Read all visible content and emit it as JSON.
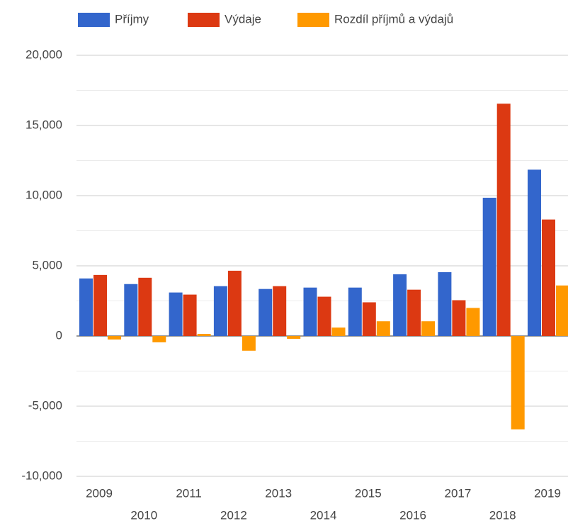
{
  "chart_data": {
    "type": "bar",
    "categories": [
      "2009",
      "2010",
      "2011",
      "2012",
      "2013",
      "2014",
      "2015",
      "2016",
      "2017",
      "2018",
      "2019"
    ],
    "series": [
      {
        "name": "Příjmy",
        "color": "#3366cc",
        "values": [
          4100,
          3700,
          3100,
          3550,
          3350,
          3450,
          3450,
          4400,
          4550,
          9850,
          11850
        ]
      },
      {
        "name": "Výdaje",
        "color": "#dc3912",
        "values": [
          4350,
          4150,
          2950,
          4650,
          3550,
          2800,
          2400,
          3300,
          2550,
          16550,
          8300
        ]
      },
      {
        "name": "Rozdíl příjmů a výdajů",
        "color": "#ff9900",
        "values": [
          -250,
          -450,
          150,
          -1050,
          -200,
          600,
          1050,
          1050,
          2000,
          -6650,
          3600
        ]
      }
    ],
    "ylim": [
      -10000,
      20000
    ],
    "yticks": [
      {
        "value": -10000,
        "label": "-10,000"
      },
      {
        "value": -5000,
        "label": "-5,000"
      },
      0,
      {
        "value": 5000,
        "label": "5,000"
      },
      {
        "value": 10000,
        "label": "10,000"
      },
      {
        "value": 15000,
        "label": "15,000"
      },
      {
        "value": 20000,
        "label": "20,000"
      }
    ],
    "minor_yticks": [
      -7500,
      -2500,
      2500,
      7500,
      12500,
      17500
    ],
    "grid": true,
    "legend": "top"
  }
}
